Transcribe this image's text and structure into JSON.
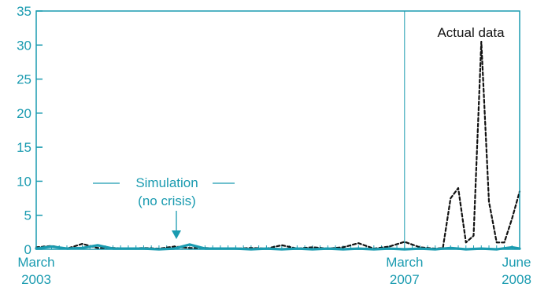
{
  "chart_data": {
    "type": "line",
    "title": "",
    "xlabel": "",
    "ylabel": "",
    "ylim": [
      0,
      35
    ],
    "yticks": [
      0,
      5,
      10,
      15,
      20,
      25,
      30,
      35
    ],
    "xlim": [
      "2003-03",
      "2008-06"
    ],
    "x_tick_labels": [
      {
        "line1": "March",
        "line2": "2003"
      },
      {
        "line1": "March",
        "line2": "2007"
      },
      {
        "line1": "June",
        "line2": "2008"
      }
    ],
    "x_tick_positions": [
      "2003-03",
      "2007-03",
      "2008-06"
    ],
    "vertical_line_at": "2007-03",
    "grid": false,
    "series": [
      {
        "name": "Actual data",
        "style": "dashed",
        "color": "#111111",
        "x": [
          "2003-03",
          "2003-05",
          "2003-07",
          "2003-09",
          "2003-11",
          "2004-01",
          "2004-03",
          "2004-05",
          "2004-07",
          "2004-09",
          "2004-11",
          "2005-01",
          "2005-03",
          "2005-05",
          "2005-07",
          "2005-09",
          "2005-11",
          "2006-01",
          "2006-03",
          "2006-05",
          "2006-07",
          "2006-09",
          "2006-11",
          "2007-01",
          "2007-03",
          "2007-05",
          "2007-07",
          "2007-08",
          "2007-09",
          "2007-10",
          "2007-11",
          "2007-12",
          "2008-01",
          "2008-02",
          "2008-03",
          "2008-04",
          "2008-05",
          "2008-06"
        ],
        "values": [
          0.3,
          0.5,
          0.1,
          0.8,
          0.2,
          0.2,
          0.1,
          0.2,
          0.1,
          0.4,
          0.2,
          0.2,
          0.1,
          0.1,
          0.2,
          0.1,
          0.6,
          0.1,
          0.3,
          0.1,
          0.3,
          0.9,
          0.1,
          0.4,
          1.1,
          0.3,
          0.1,
          0.2,
          7.5,
          9.0,
          1.0,
          2.0,
          30.5,
          7.0,
          1.0,
          1.0,
          4.5,
          8.5
        ]
      },
      {
        "name": "Simulation (no crisis)",
        "style": "solid",
        "color": "#1a9bb0",
        "x": [
          "2003-03",
          "2003-05",
          "2003-07",
          "2003-09",
          "2003-11",
          "2004-01",
          "2004-03",
          "2004-05",
          "2004-07",
          "2004-09",
          "2004-11",
          "2005-01",
          "2005-03",
          "2005-05",
          "2005-07",
          "2005-09",
          "2005-11",
          "2006-01",
          "2006-03",
          "2006-05",
          "2006-07",
          "2006-09",
          "2006-11",
          "2007-01",
          "2007-03",
          "2007-05",
          "2007-07",
          "2007-09",
          "2007-11",
          "2008-01",
          "2008-03",
          "2008-05",
          "2008-06"
        ],
        "values": [
          0.1,
          0.4,
          0.1,
          0.2,
          0.6,
          0.1,
          0.1,
          0.1,
          0.0,
          0.1,
          0.7,
          0.1,
          0.1,
          0.1,
          0.0,
          0.1,
          0.0,
          0.1,
          0.0,
          0.1,
          0.0,
          0.1,
          0.0,
          0.1,
          0.0,
          0.1,
          0.0,
          0.2,
          0.0,
          0.1,
          0.0,
          0.3,
          0.1
        ]
      }
    ],
    "annotations": [
      {
        "id": "actual",
        "text": "Actual data"
      },
      {
        "id": "sim1",
        "text": "Simulation"
      },
      {
        "id": "sim2",
        "text": "(no crisis)"
      }
    ]
  }
}
